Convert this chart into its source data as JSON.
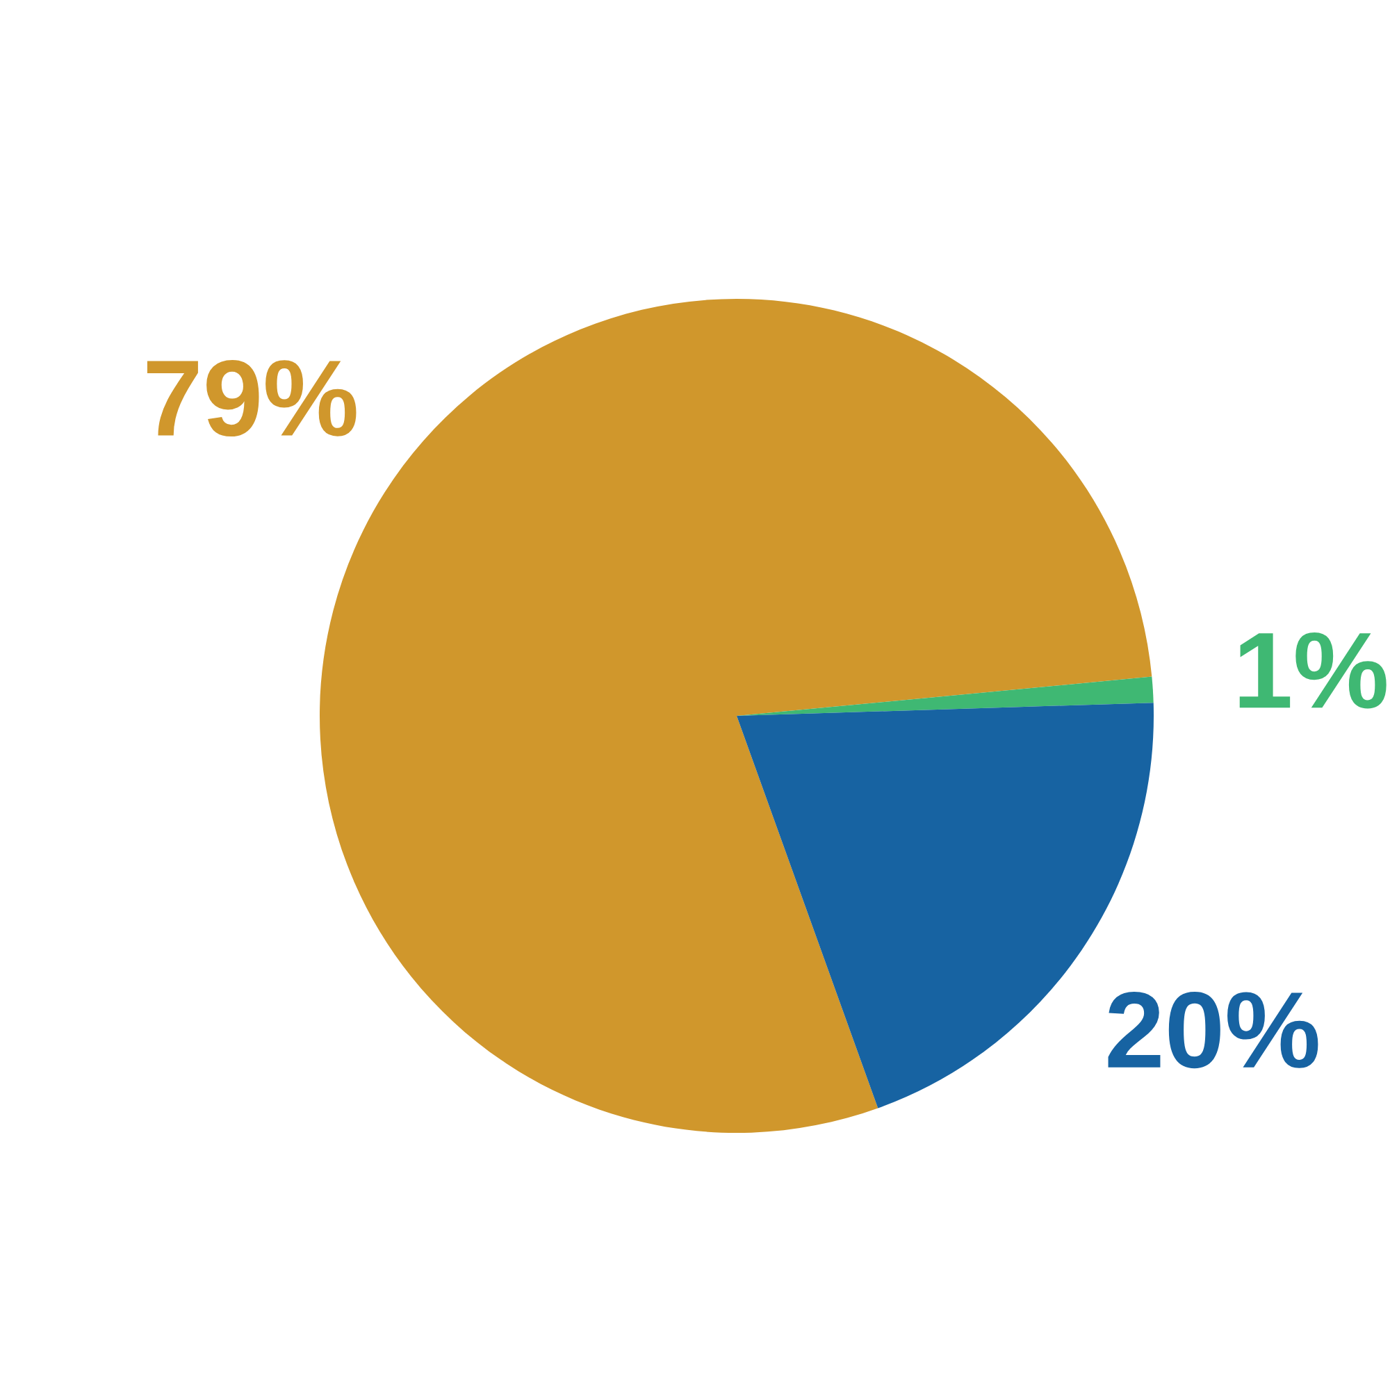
{
  "chart_data": {
    "type": "pie",
    "categories": [
      null,
      null,
      null
    ],
    "values": [
      79,
      1,
      20
    ],
    "colors": [
      "#d0972c",
      "#3fb873",
      "#1763a2"
    ],
    "value_labels": [
      "79%",
      "1%",
      "20%"
    ]
  }
}
